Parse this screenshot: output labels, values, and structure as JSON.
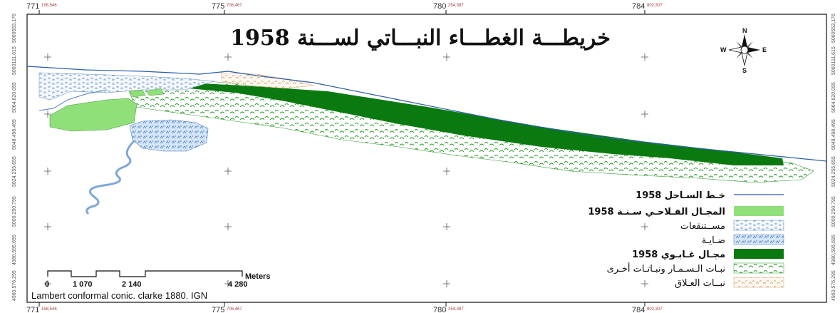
{
  "title": "خريطـــة الغطـــاء النبـــاتي لســـنة 1958",
  "compass": {
    "n": "N",
    "s": "S",
    "e": "E",
    "w": "W"
  },
  "top_coords": [
    {
      "major": "771",
      "minor": "158,546"
    },
    {
      "major": "775",
      "minor": "706,467"
    },
    {
      "major": "780",
      "minor": "254,387"
    },
    {
      "major": "784",
      "minor": "802,307"
    }
  ],
  "bottom_coords": [
    {
      "major": "771",
      "minor": "158,546"
    },
    {
      "major": "775",
      "minor": "706,467"
    },
    {
      "major": "780",
      "minor": "254,387"
    },
    {
      "major": "784",
      "minor": "802,307"
    }
  ],
  "left_coords": [
    "5060553,176",
    "5060111,615",
    "5064,620,055",
    "5048,498,495",
    "5024,255,655",
    "5000,250,795",
    "4980,595,695",
    "4960,576,295"
  ],
  "right_coords": [
    "5060553,176",
    "5060111,615",
    "5064,620,055",
    "5048,498,495",
    "5024,255,655",
    "5000,250,795",
    "4980,595,695",
    "4960,576,295"
  ],
  "legend": [
    {
      "label": "خـط السـاحل 1958",
      "symbol": "line",
      "color": "#2a5ea8"
    },
    {
      "label": "المجـال الفـلاحـي سـنـة 1958",
      "symbol": "fill",
      "color": "#90e07a"
    },
    {
      "label": "مســتنقعات",
      "symbol": "marsh",
      "color": "#7b9fd0"
    },
    {
      "label": "ضـايـة",
      "symbol": "pond",
      "color": "#a9c9ea"
    },
    {
      "label": "مجـال غـابـوي 1958",
      "symbol": "fill",
      "color": "#0a7a10"
    },
    {
      "label": "نبـات الـسـمـار ونبـاتـات أخـرى",
      "symbol": "grass",
      "color": "#2e9a2e"
    },
    {
      "label": "نبــات العـلاق",
      "symbol": "shrub",
      "color": "#d9b080"
    }
  ],
  "scale": {
    "ticks": [
      "0",
      "1 070",
      "2 140",
      "4 280"
    ],
    "unit": "Meters"
  },
  "projection": "Lambert conformal conic. clarke 1880. IGN",
  "colors": {
    "coast": "#2a5ea8",
    "agri": "#90e07a",
    "forest": "#0a7a10",
    "grass": "#2e9a2e",
    "pond": "#a9c9ea",
    "shrub": "#d9b080"
  }
}
